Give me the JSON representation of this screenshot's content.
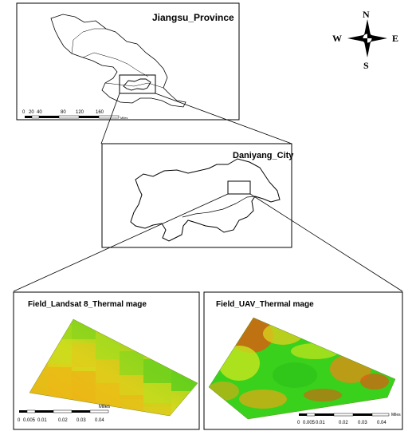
{
  "panels": {
    "province": {
      "title": "Jiangsu_Province"
    },
    "city": {
      "title": "Daniyang_City"
    },
    "landsat": {
      "title": "Field_Landsat 8_Thermal mage"
    },
    "uav": {
      "title": "Field_UAV_Thermal mage"
    }
  },
  "compass": {
    "n": "N",
    "s": "S",
    "e": "E",
    "w": "W"
  },
  "scalebars": {
    "province": {
      "ticks": [
        "0",
        "20",
        "40",
        "80",
        "120",
        "160"
      ],
      "unit": "Miles"
    },
    "landsat": {
      "ticks": [
        "0",
        "0.005",
        "0.01",
        "0.02",
        "0.03",
        "0.04"
      ],
      "unit": "Miles"
    },
    "uav": {
      "ticks": [
        "0",
        "0.005",
        "0.01",
        "0.02",
        "0.03",
        "0.04"
      ],
      "unit": "Miles"
    }
  },
  "colors": {
    "thermal_low": "#39d11c",
    "thermal_mid": "#c8e61e",
    "thermal_high": "#f0b414",
    "thermal_hot": "#e05a0f",
    "outline": "#000000"
  }
}
